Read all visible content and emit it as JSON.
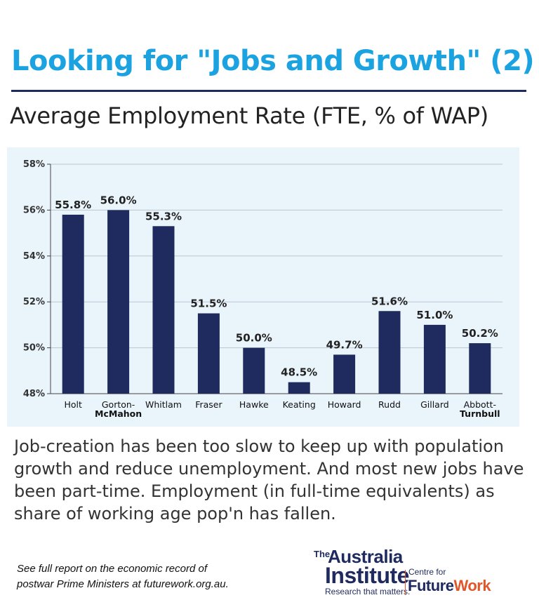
{
  "header": {
    "title": "Looking for \"Jobs and Growth\" (2)",
    "subtitle": "Average Employment Rate (FTE, % of WAP)"
  },
  "colors": {
    "title": "#1aa3e0",
    "bar": "#1f2a5e",
    "chart_bg": "#eaf4fb",
    "rule": "#1f2a5e",
    "logo_accent": "#e0572a"
  },
  "chart_data": {
    "type": "bar",
    "categories": [
      "Holt",
      "Gorton-McMahon",
      "Whitlam",
      "Fraser",
      "Hawke",
      "Keating",
      "Howard",
      "Rudd",
      "Gillard",
      "Abbott-Turnbull"
    ],
    "category_lines": [
      [
        "Holt"
      ],
      [
        "Gorton-",
        "McMahon"
      ],
      [
        "Whitlam"
      ],
      [
        "Fraser"
      ],
      [
        "Hawke"
      ],
      [
        "Keating"
      ],
      [
        "Howard"
      ],
      [
        "Rudd"
      ],
      [
        "Gillard"
      ],
      [
        "Abbott-",
        "Turnbull"
      ]
    ],
    "values": [
      55.8,
      56.0,
      55.3,
      51.5,
      50.0,
      48.5,
      49.7,
      51.6,
      51.0,
      50.2
    ],
    "data_labels": [
      "55.8%",
      "56.0%",
      "55.3%",
      "51.5%",
      "50.0%",
      "48.5%",
      "49.7%",
      "51.6%",
      "51.0%",
      "50.2%"
    ],
    "ylim": [
      48,
      58
    ],
    "yticks": [
      48,
      50,
      52,
      54,
      56,
      58
    ],
    "ytick_labels": [
      "48%",
      "50%",
      "52%",
      "54%",
      "56%",
      "58%"
    ],
    "grid": true,
    "title": "",
    "xlabel": "",
    "ylabel": ""
  },
  "body_text": "Job-creation has been too slow to keep up with population growth and reduce unemployment. And most new jobs have been part-time. Employment (in full-time equivalents) as share of working age pop'n has fallen.",
  "footnote": {
    "line1": "See full report on the economic record of",
    "line2": "postwar Prime Ministers at futurework.org.au."
  },
  "logo": {
    "the": "The",
    "australia": "Australia",
    "institute": "Institute",
    "tagline": "Research that matters.",
    "centre_for": "Centre for",
    "future": "Future",
    "work": "Work"
  }
}
